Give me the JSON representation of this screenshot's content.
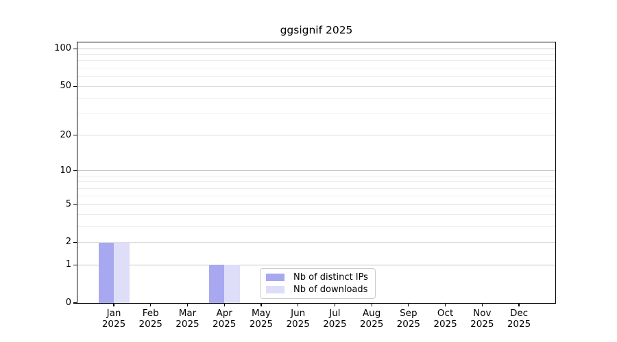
{
  "figure": {
    "background": "#ffffff"
  },
  "chart_data": {
    "type": "bar",
    "title": "ggsignif 2025",
    "categories": [
      {
        "month": "Jan",
        "year": "2025"
      },
      {
        "month": "Feb",
        "year": "2025"
      },
      {
        "month": "Mar",
        "year": "2025"
      },
      {
        "month": "Apr",
        "year": "2025"
      },
      {
        "month": "May",
        "year": "2025"
      },
      {
        "month": "Jun",
        "year": "2025"
      },
      {
        "month": "Jul",
        "year": "2025"
      },
      {
        "month": "Aug",
        "year": "2025"
      },
      {
        "month": "Sep",
        "year": "2025"
      },
      {
        "month": "Oct",
        "year": "2025"
      },
      {
        "month": "Nov",
        "year": "2025"
      },
      {
        "month": "Dec",
        "year": "2025"
      }
    ],
    "series": [
      {
        "name": "Nb of distinct IPs",
        "color": "#a8a8f0",
        "values": [
          2,
          0,
          0,
          1,
          0,
          0,
          0,
          0,
          0,
          0,
          0,
          0
        ]
      },
      {
        "name": "Nb of downloads",
        "color": "#dedef8",
        "values": [
          2,
          0,
          0,
          1,
          0,
          0,
          0,
          0,
          0,
          0,
          0,
          0
        ]
      }
    ],
    "xlabel": "",
    "ylabel": "",
    "yscale": "log1p",
    "ylim": [
      0,
      112
    ],
    "yticks": [
      0,
      1,
      2,
      5,
      10,
      20,
      50,
      100
    ],
    "minor_gridlines": [
      3,
      4,
      6,
      7,
      8,
      9,
      30,
      40,
      60,
      70,
      80,
      90
    ],
    "grid": "horizontal",
    "legend_position": "lower center (inside plot)",
    "colors": {
      "axis": "#000000",
      "grid_major": "#c2c2c2",
      "grid_mid": "#dcdcdc",
      "grid_minor": "#ececec",
      "legend_border": "#cccccc"
    }
  }
}
